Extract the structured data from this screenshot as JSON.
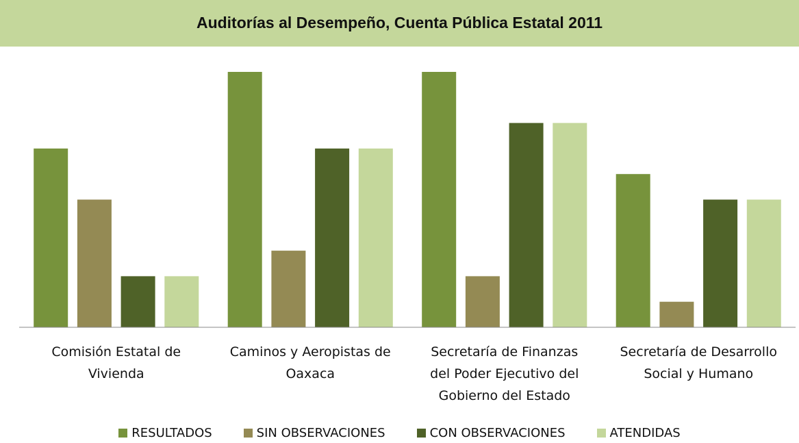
{
  "chart_data": {
    "type": "bar",
    "title": "Auditorías al Desempeño, Cuenta Pública Estatal 2011",
    "categories": [
      "Comisión Estatal de Vivienda",
      "Caminos y Aeropistas de Oaxaca",
      "Secretaría de Finanzas del Poder Ejecutivo del Gobierno del Estado",
      "Secretaría de Desarrollo Social y Humano"
    ],
    "series": [
      {
        "name": "RESULTADOS",
        "color": "#77933c",
        "values": [
          7,
          10,
          10,
          6
        ]
      },
      {
        "name": "SIN OBSERVACIONES",
        "color": "#948a54",
        "values": [
          5,
          3,
          2,
          1
        ]
      },
      {
        "name": "CON OBSERVACIONES",
        "color": "#4f6228",
        "values": [
          2,
          7,
          8,
          5
        ]
      },
      {
        "name": "ATENDIDAS",
        "color": "#c4d79b",
        "values": [
          2,
          7,
          8,
          5
        ]
      }
    ],
    "legend": "bottom"
  }
}
